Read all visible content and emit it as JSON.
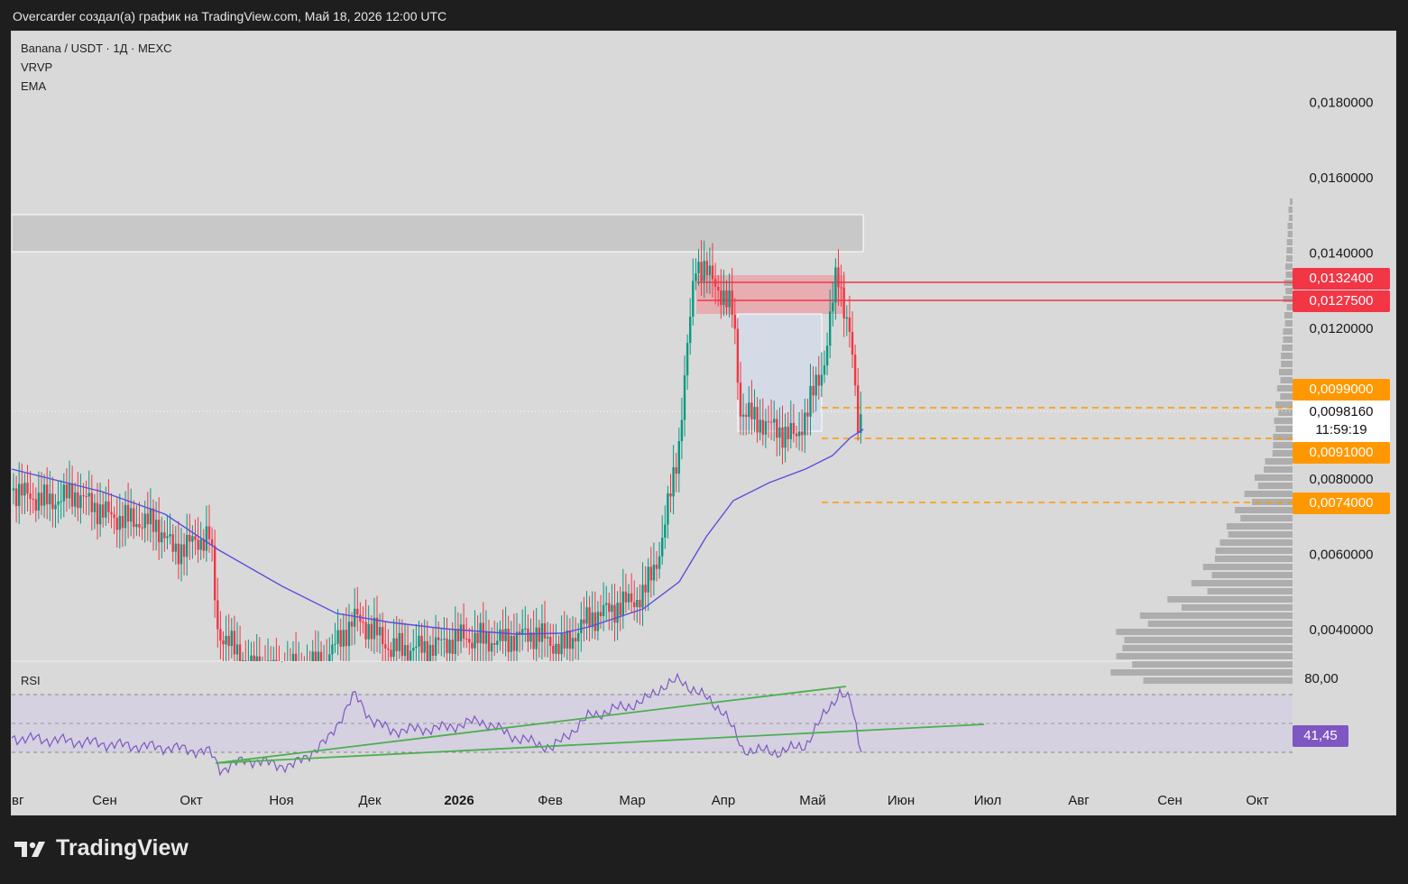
{
  "header": {
    "credit": "Overcarder создал(а) график на TradingView.com, Май 18, 2026 12:00 UTC"
  },
  "legend": {
    "symbol": "Banana / USDT · 1Д · MEXC",
    "indicator1": "VRVP",
    "indicator2": "EMA"
  },
  "price_axis": {
    "ticks": [
      "0,0180000",
      "0,0160000",
      "0,0140000",
      "0,0120000",
      "0,0080000",
      "0,0060000",
      "0,0040000"
    ],
    "tick_values": [
      0.018,
      0.016,
      0.014,
      0.012,
      0.008,
      0.006,
      0.004
    ]
  },
  "price_labels": {
    "resistance_1": "0,0132400",
    "resistance_2": "0,0127500",
    "level_1": "0,0099000",
    "current_price": "0,0098160",
    "countdown": "11:59:19",
    "level_2": "0,0091000",
    "level_3": "0,0074000"
  },
  "time_axis": {
    "labels": [
      "вг",
      "Сен",
      "Окт",
      "Ноя",
      "Дек",
      "2026",
      "Фев",
      "Мар",
      "Апр",
      "Май",
      "Июн",
      "Июл",
      "Авг",
      "Сен",
      "Окт"
    ]
  },
  "rsi": {
    "label": "RSI",
    "upper_tick": "80,00",
    "value": "41,45",
    "upper_band": 70,
    "lower_band": 30
  },
  "colors": {
    "up_candle": "#089981",
    "down_candle": "#f23645",
    "ema_line": "#5b4fdb",
    "rsi_line": "#7e57c2",
    "trendline": "#4caf50",
    "resistance": "#f23645",
    "support_dashed": "#ff9800",
    "zone_gray": "#c8c8c8"
  },
  "brand": {
    "name": "TradingView"
  }
}
